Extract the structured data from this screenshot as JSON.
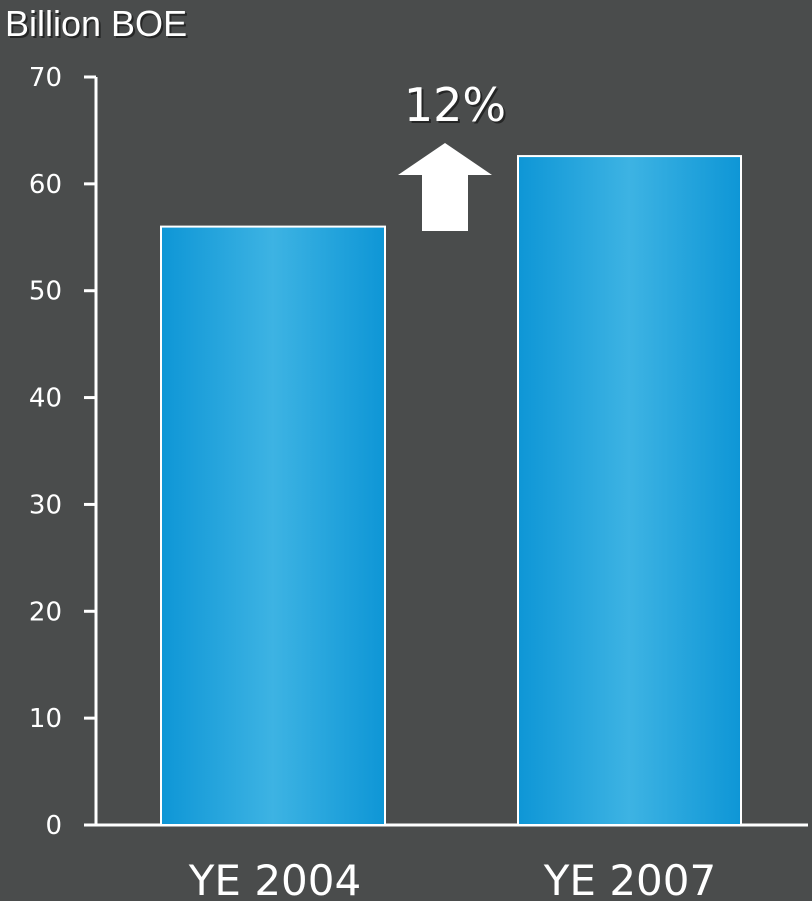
{
  "chart_data": {
    "type": "bar",
    "title": "",
    "xlabel": "",
    "ylabel": "Billion BOE",
    "categories": [
      "YE 2004",
      "YE 2007"
    ],
    "values": [
      56,
      62.6
    ],
    "ylim": [
      0,
      70
    ],
    "yticks": [
      0,
      10,
      20,
      30,
      40,
      50,
      60,
      70
    ],
    "grid": false,
    "legend": "none",
    "annotation": {
      "label": "12%",
      "icon": "up-arrow-icon"
    },
    "colors": {
      "background": "#4a4c4c",
      "bar_edge": "#0e96d6",
      "bar_center": "#3db3e3",
      "bar_border": "#ffffff",
      "axis": "#ffffff",
      "text": "#ffffff"
    }
  }
}
